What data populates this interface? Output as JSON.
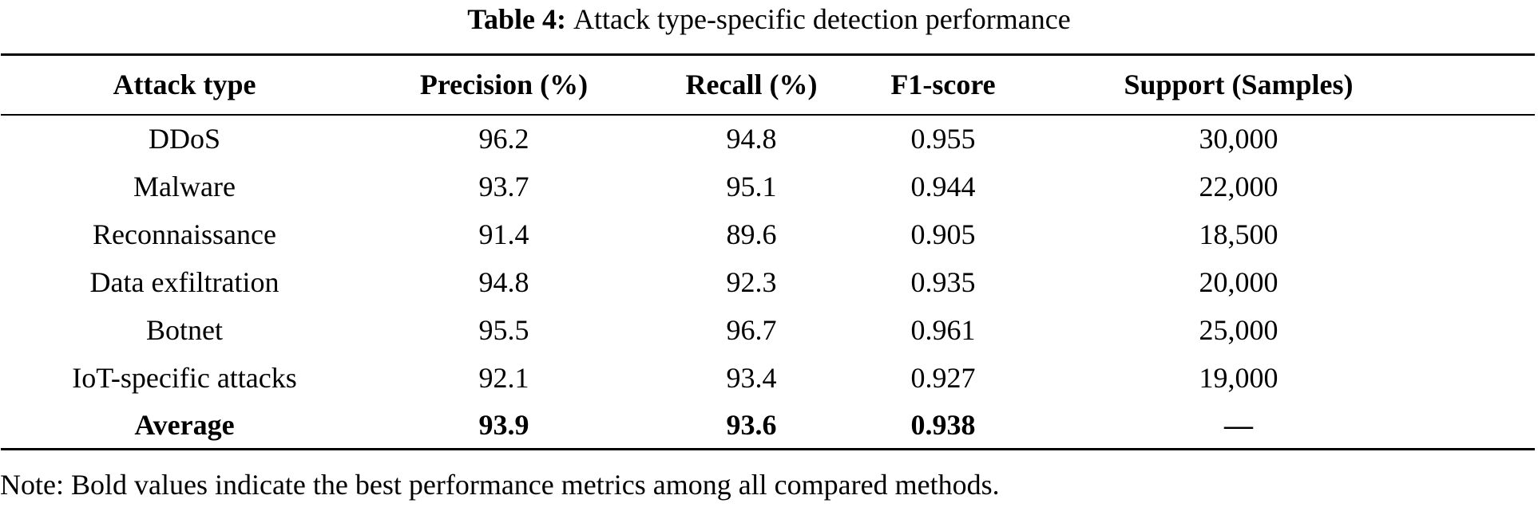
{
  "caption": {
    "label": "Table 4:",
    "text": "Attack type-specific detection performance"
  },
  "table": {
    "columns": [
      "Attack type",
      "Precision (%)",
      "Recall (%)",
      "F1-score",
      "Support (Samples)"
    ],
    "rows": [
      {
        "cells": [
          "DDoS",
          "96.2",
          "94.8",
          "0.955",
          "30,000"
        ],
        "bold": false
      },
      {
        "cells": [
          "Malware",
          "93.7",
          "95.1",
          "0.944",
          "22,000"
        ],
        "bold": false
      },
      {
        "cells": [
          "Reconnaissance",
          "91.4",
          "89.6",
          "0.905",
          "18,500"
        ],
        "bold": false
      },
      {
        "cells": [
          "Data exfiltration",
          "94.8",
          "92.3",
          "0.935",
          "20,000"
        ],
        "bold": false
      },
      {
        "cells": [
          "Botnet",
          "95.5",
          "96.7",
          "0.961",
          "25,000"
        ],
        "bold": false
      },
      {
        "cells": [
          "IoT-specific attacks",
          "92.1",
          "93.4",
          "0.927",
          "19,000"
        ],
        "bold": false
      },
      {
        "cells": [
          "Average",
          "93.9",
          "93.6",
          "0.938",
          "—"
        ],
        "bold": true
      }
    ]
  },
  "note": "Note: Bold values indicate the best performance metrics among all compared methods."
}
